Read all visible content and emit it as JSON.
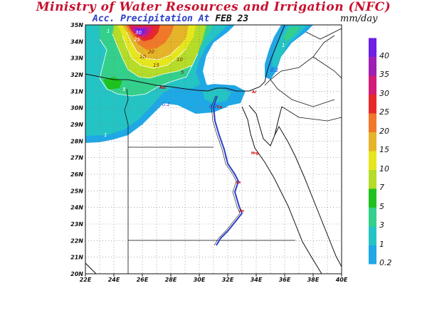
{
  "header": {
    "title": "Ministry of Water Resources and Irrigation (NFC)",
    "subtitle_prefix": "Acc. Precipitation  At",
    "subtitle_date": "FEB 23",
    "units": "mm/day"
  },
  "map": {
    "lon_range": [
      22,
      40
    ],
    "lat_range": [
      20,
      35
    ],
    "x_ticks": [
      "22E",
      "24E",
      "26E",
      "28E",
      "30E",
      "32E",
      "34E",
      "36E",
      "38E",
      "40E"
    ],
    "y_ticks": [
      "20N",
      "21N",
      "22N",
      "23N",
      "24N",
      "25N",
      "26N",
      "27N",
      "28N",
      "29N",
      "30N",
      "31N",
      "32N",
      "33N",
      "34N",
      "35N"
    ],
    "grid": "dotted"
  },
  "legend": {
    "placement": "right",
    "levels": [
      {
        "label": "0.2",
        "color": "#1fa8e6"
      },
      {
        "label": "1",
        "color": "#25c4c4"
      },
      {
        "label": "3",
        "color": "#33d08c"
      },
      {
        "label": "5",
        "color": "#1ec21e"
      },
      {
        "label": "7",
        "color": "#b4dc28"
      },
      {
        "label": "10",
        "color": "#e6e61e"
      },
      {
        "label": "15",
        "color": "#e6b428"
      },
      {
        "label": "20",
        "color": "#f07828"
      },
      {
        "label": "25",
        "color": "#e62828"
      },
      {
        "label": "30",
        "color": "#d21c78"
      },
      {
        "label": "35",
        "color": "#a01eb4"
      },
      {
        "label": "40",
        "color": "#6e1ee6"
      }
    ]
  },
  "contour_labels": [
    "30",
    "25",
    "20",
    "15",
    "10",
    "10",
    "5",
    "1",
    "0.2",
    "0.2",
    "1",
    "0.2",
    "5",
    "1"
  ],
  "city_labels": [
    "Alx",
    "Ca",
    "Ar",
    "Hrg",
    "Lx",
    "As"
  ]
}
